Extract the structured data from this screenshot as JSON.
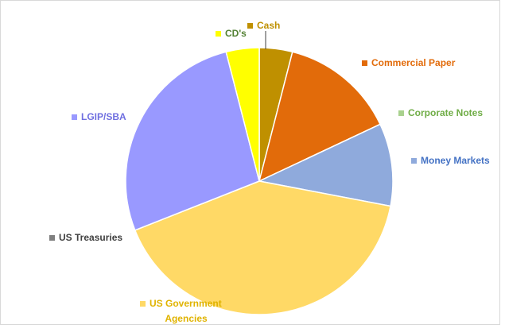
{
  "chart_data": {
    "type": "pie",
    "categories": [
      "Cash",
      "Commercial Paper",
      "Corporate Notes",
      "Money Markets",
      "US Government Agencies",
      "US Treasuries",
      "LGIP/SBA",
      "CD's"
    ],
    "values": [
      4,
      14,
      0,
      10,
      41,
      0,
      27,
      4
    ],
    "colors": [
      "#bf9000",
      "#e26b0a",
      "#a9d18e",
      "#8faadc",
      "#ffd966",
      "#7f7f7f",
      "#9999ff",
      "#ffff00"
    ],
    "label_colors": [
      "#bf9000",
      "#e26b0a",
      "#70ad47",
      "#4472c4",
      "#e0b300",
      "#404040",
      "#6f6fe0",
      "#548235"
    ]
  }
}
